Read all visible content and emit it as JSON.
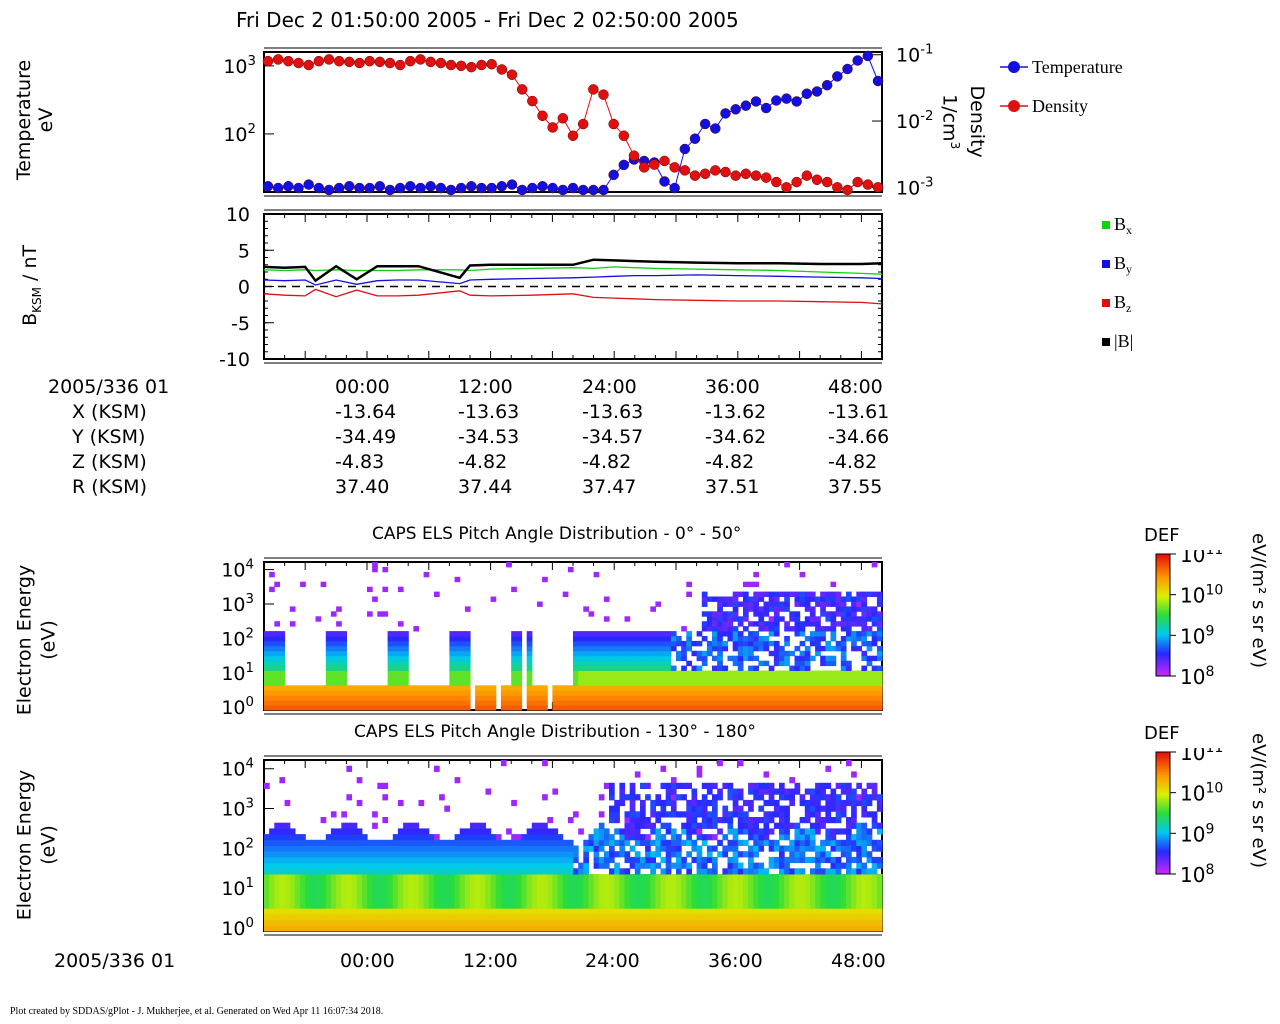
{
  "header": {
    "title": "Fri Dec 2 01:50:00 2005 - Fri Dec 2 02:50:00 2005"
  },
  "footer": {
    "credit": "Plot created by SDDAS/gPlot - J. Mukherjee, et al.  Generated on Wed Apr 11 16:07:34 2018."
  },
  "colors": {
    "temperature": "#1010e0",
    "density": "#e01010",
    "bx": "#10d010",
    "by": "#1010e0",
    "bz": "#e01010",
    "btot": "#000000"
  },
  "chart_data": [
    {
      "type": "scatter",
      "title": "",
      "ylabel": "Temperature",
      "ylabel_unit": "eV",
      "y2label": "Density",
      "y2label_unit": "1/cm",
      "y2label_unit_sup": "3",
      "yscale": "log",
      "ylim": [
        14,
        1600
      ],
      "y2lim": [
        0.00085,
        0.11
      ],
      "y_ticks": [
        {
          "value": 100,
          "base": "10",
          "exp": "2"
        },
        {
          "value": 1000,
          "base": "10",
          "exp": "3"
        }
      ],
      "y2_ticks": [
        {
          "value": 0.001,
          "base": "10",
          "exp": "-3"
        },
        {
          "value": 0.01,
          "base": "10",
          "exp": "-2"
        },
        {
          "value": 0.1,
          "base": "10",
          "exp": "-1"
        }
      ],
      "legend_position": "right",
      "series": [
        {
          "name": "Temperature",
          "axis": "left",
          "color": "#1010e0",
          "x": [
            0,
            1,
            2,
            3,
            4,
            5,
            6,
            7,
            8,
            9,
            10,
            11,
            12,
            13,
            14,
            15,
            16,
            17,
            18,
            19,
            20,
            21,
            22,
            23,
            24,
            25,
            26,
            27,
            28,
            29,
            30,
            31,
            32,
            33,
            34,
            35,
            36,
            37,
            38,
            39,
            40,
            41,
            42,
            43,
            44,
            45,
            46,
            47,
            48,
            49,
            50,
            51,
            52,
            53,
            54,
            55,
            56,
            57,
            58,
            59,
            60
          ],
          "y": [
            17,
            16,
            17,
            16,
            18,
            16,
            15,
            16,
            17,
            16,
            16,
            17,
            15,
            16,
            17,
            16,
            17,
            16,
            15,
            16,
            17,
            16,
            16,
            17,
            18,
            15,
            16,
            17,
            16,
            15,
            16,
            15,
            14,
            14,
            25,
            35,
            42,
            40,
            38,
            20,
            16,
            60,
            85,
            140,
            120,
            200,
            230,
            260,
            300,
            240,
            310,
            330,
            300,
            390,
            420,
            520,
            700,
            900,
            1200,
            1400,
            600
          ]
        },
        {
          "name": "Density",
          "axis": "right",
          "color": "#e01010",
          "x": [
            0,
            1,
            2,
            3,
            4,
            5,
            6,
            7,
            8,
            9,
            10,
            11,
            12,
            13,
            14,
            15,
            16,
            17,
            18,
            19,
            20,
            21,
            22,
            23,
            24,
            25,
            26,
            27,
            28,
            29,
            30,
            31,
            32,
            33,
            34,
            35,
            36,
            37,
            38,
            39,
            40,
            41,
            42,
            43,
            44,
            45,
            46,
            47,
            48,
            49,
            50,
            51,
            52,
            53,
            54,
            55,
            56,
            57,
            58,
            59,
            60
          ],
          "y": [
            0.08,
            0.085,
            0.08,
            0.075,
            0.07,
            0.08,
            0.085,
            0.08,
            0.078,
            0.075,
            0.08,
            0.078,
            0.075,
            0.07,
            0.08,
            0.085,
            0.078,
            0.075,
            0.07,
            0.068,
            0.065,
            0.07,
            0.072,
            0.06,
            0.05,
            0.03,
            0.02,
            0.012,
            0.008,
            0.011,
            0.006,
            0.009,
            0.03,
            0.025,
            0.009,
            0.006,
            0.003,
            0.002,
            0.0022,
            0.0025,
            0.002,
            0.0018,
            0.0015,
            0.0016,
            0.0018,
            0.0017,
            0.0015,
            0.0016,
            0.0015,
            0.0014,
            0.0012,
            0.001,
            0.0012,
            0.0015,
            0.0013,
            0.0012,
            0.001,
            0.0009,
            0.0012,
            0.0011,
            0.001
          ]
        }
      ]
    },
    {
      "type": "line",
      "title": "",
      "ylabel": "B",
      "ylabel_sub": "KSM",
      "ylabel_unit": " / nT",
      "ylim": [
        -10,
        10
      ],
      "y_ticks": [
        -10,
        -5,
        0,
        5,
        10
      ],
      "x_range": [
        -10,
        50
      ],
      "x_ticks": [
        0,
        12,
        24,
        36,
        48
      ],
      "legend_position": "right",
      "series": [
        {
          "name": "B",
          "name_sub": "x",
          "color": "#10d010",
          "x": [
            -10,
            -8,
            -6,
            -5,
            -3,
            -1,
            1,
            3,
            5,
            9,
            10,
            12,
            16,
            20,
            22,
            24,
            26,
            28,
            32,
            36,
            40,
            44,
            48,
            50
          ],
          "y": [
            2.3,
            2.2,
            2.3,
            2.2,
            2.3,
            2.2,
            2.2,
            2.2,
            2.3,
            2.3,
            2.2,
            2.4,
            2.5,
            2.6,
            2.5,
            2.7,
            2.6,
            2.5,
            2.4,
            2.3,
            2.2,
            2.0,
            1.8,
            1.7
          ]
        },
        {
          "name": "B",
          "name_sub": "y",
          "color": "#1010e0",
          "x": [
            -10,
            -8,
            -6,
            -5,
            -3,
            -1,
            1,
            3,
            5,
            9,
            10,
            12,
            16,
            20,
            22,
            24,
            26,
            28,
            32,
            36,
            40,
            44,
            48,
            50
          ],
          "y": [
            0.9,
            0.8,
            0.9,
            0.2,
            0.9,
            0.3,
            0.8,
            0.9,
            0.9,
            0.4,
            0.9,
            1.0,
            1.1,
            1.2,
            1.3,
            1.4,
            1.5,
            1.5,
            1.6,
            1.5,
            1.4,
            1.3,
            1.2,
            1.1
          ]
        },
        {
          "name": "B",
          "name_sub": "z",
          "color": "#e01010",
          "x": [
            -10,
            -8,
            -6,
            -5,
            -3,
            -1,
            1,
            3,
            5,
            9,
            10,
            12,
            16,
            20,
            22,
            24,
            26,
            28,
            32,
            36,
            40,
            44,
            48,
            50
          ],
          "y": [
            -1.0,
            -1.2,
            -1.3,
            -0.4,
            -1.4,
            -0.5,
            -1.3,
            -1.3,
            -1.2,
            -0.6,
            -1.2,
            -1.3,
            -1.2,
            -1.0,
            -1.5,
            -1.6,
            -1.7,
            -1.8,
            -1.9,
            -2.0,
            -2.0,
            -2.1,
            -2.2,
            -2.4
          ]
        },
        {
          "name": "|B|",
          "name_sub": "",
          "color": "#000000",
          "x": [
            -10,
            -8,
            -6,
            -5,
            -3,
            -1,
            1,
            3,
            5,
            9,
            10,
            12,
            16,
            20,
            22,
            24,
            26,
            28,
            32,
            36,
            40,
            44,
            48,
            50
          ],
          "y": [
            2.7,
            2.6,
            2.7,
            0.8,
            2.8,
            1.0,
            2.8,
            2.8,
            2.8,
            1.2,
            2.9,
            3.0,
            3.0,
            3.0,
            3.7,
            3.6,
            3.5,
            3.4,
            3.3,
            3.2,
            3.2,
            3.1,
            3.1,
            3.2
          ]
        }
      ]
    },
    {
      "type": "heatmap",
      "title": "CAPS ELS Pitch Angle Distribution - 0° - 50°",
      "ylabel": "Electron Energy",
      "ylabel_unit": "(eV)",
      "yscale": "log",
      "y_ticks": [
        {
          "base": "10",
          "exp": "0"
        },
        {
          "base": "10",
          "exp": "1"
        },
        {
          "base": "10",
          "exp": "2"
        },
        {
          "base": "10",
          "exp": "3"
        },
        {
          "base": "10",
          "exp": "4"
        }
      ],
      "colorbar": {
        "label": "DEF",
        "unit": "eV/(m² s sr eV)",
        "ticks": [
          {
            "base": "10",
            "exp": "8"
          },
          {
            "base": "10",
            "exp": "9"
          },
          {
            "base": "10",
            "exp": "10"
          },
          {
            "base": "10",
            "exp": "11"
          }
        ]
      }
    },
    {
      "type": "heatmap",
      "title": "CAPS ELS Pitch Angle Distribution - 130° - 180°",
      "ylabel": "Electron Energy",
      "ylabel_unit": "(eV)",
      "yscale": "log",
      "y_ticks": [
        {
          "base": "10",
          "exp": "0"
        },
        {
          "base": "10",
          "exp": "1"
        },
        {
          "base": "10",
          "exp": "2"
        },
        {
          "base": "10",
          "exp": "3"
        },
        {
          "base": "10",
          "exp": "4"
        }
      ],
      "colorbar": {
        "label": "DEF",
        "unit": "eV/(m² s sr eV)",
        "ticks": [
          {
            "base": "10",
            "exp": "8"
          },
          {
            "base": "10",
            "exp": "9"
          },
          {
            "base": "10",
            "exp": "10"
          },
          {
            "base": "10",
            "exp": "11"
          }
        ]
      }
    }
  ],
  "ephemeris": {
    "start_label": "2005/336 01",
    "times": [
      "00:00",
      "12:00",
      "24:00",
      "36:00",
      "48:00"
    ],
    "rows": [
      {
        "label": "X (KSM)",
        "values": [
          "-13.64",
          "-13.63",
          "-13.63",
          "-13.62",
          "-13.61"
        ]
      },
      {
        "label": "Y (KSM)",
        "values": [
          "-34.49",
          "-34.53",
          "-34.57",
          "-34.62",
          "-34.66"
        ]
      },
      {
        "label": "Z (KSM)",
        "values": [
          "-4.83",
          "-4.82",
          "-4.82",
          "-4.82",
          "-4.82"
        ]
      },
      {
        "label": "R (KSM)",
        "values": [
          "37.40",
          "37.44",
          "37.47",
          "37.51",
          "37.55"
        ]
      }
    ]
  },
  "bottom_axis": {
    "start_label": "2005/336 01",
    "times": [
      "00:00",
      "12:00",
      "24:00",
      "36:00",
      "48:00"
    ]
  }
}
